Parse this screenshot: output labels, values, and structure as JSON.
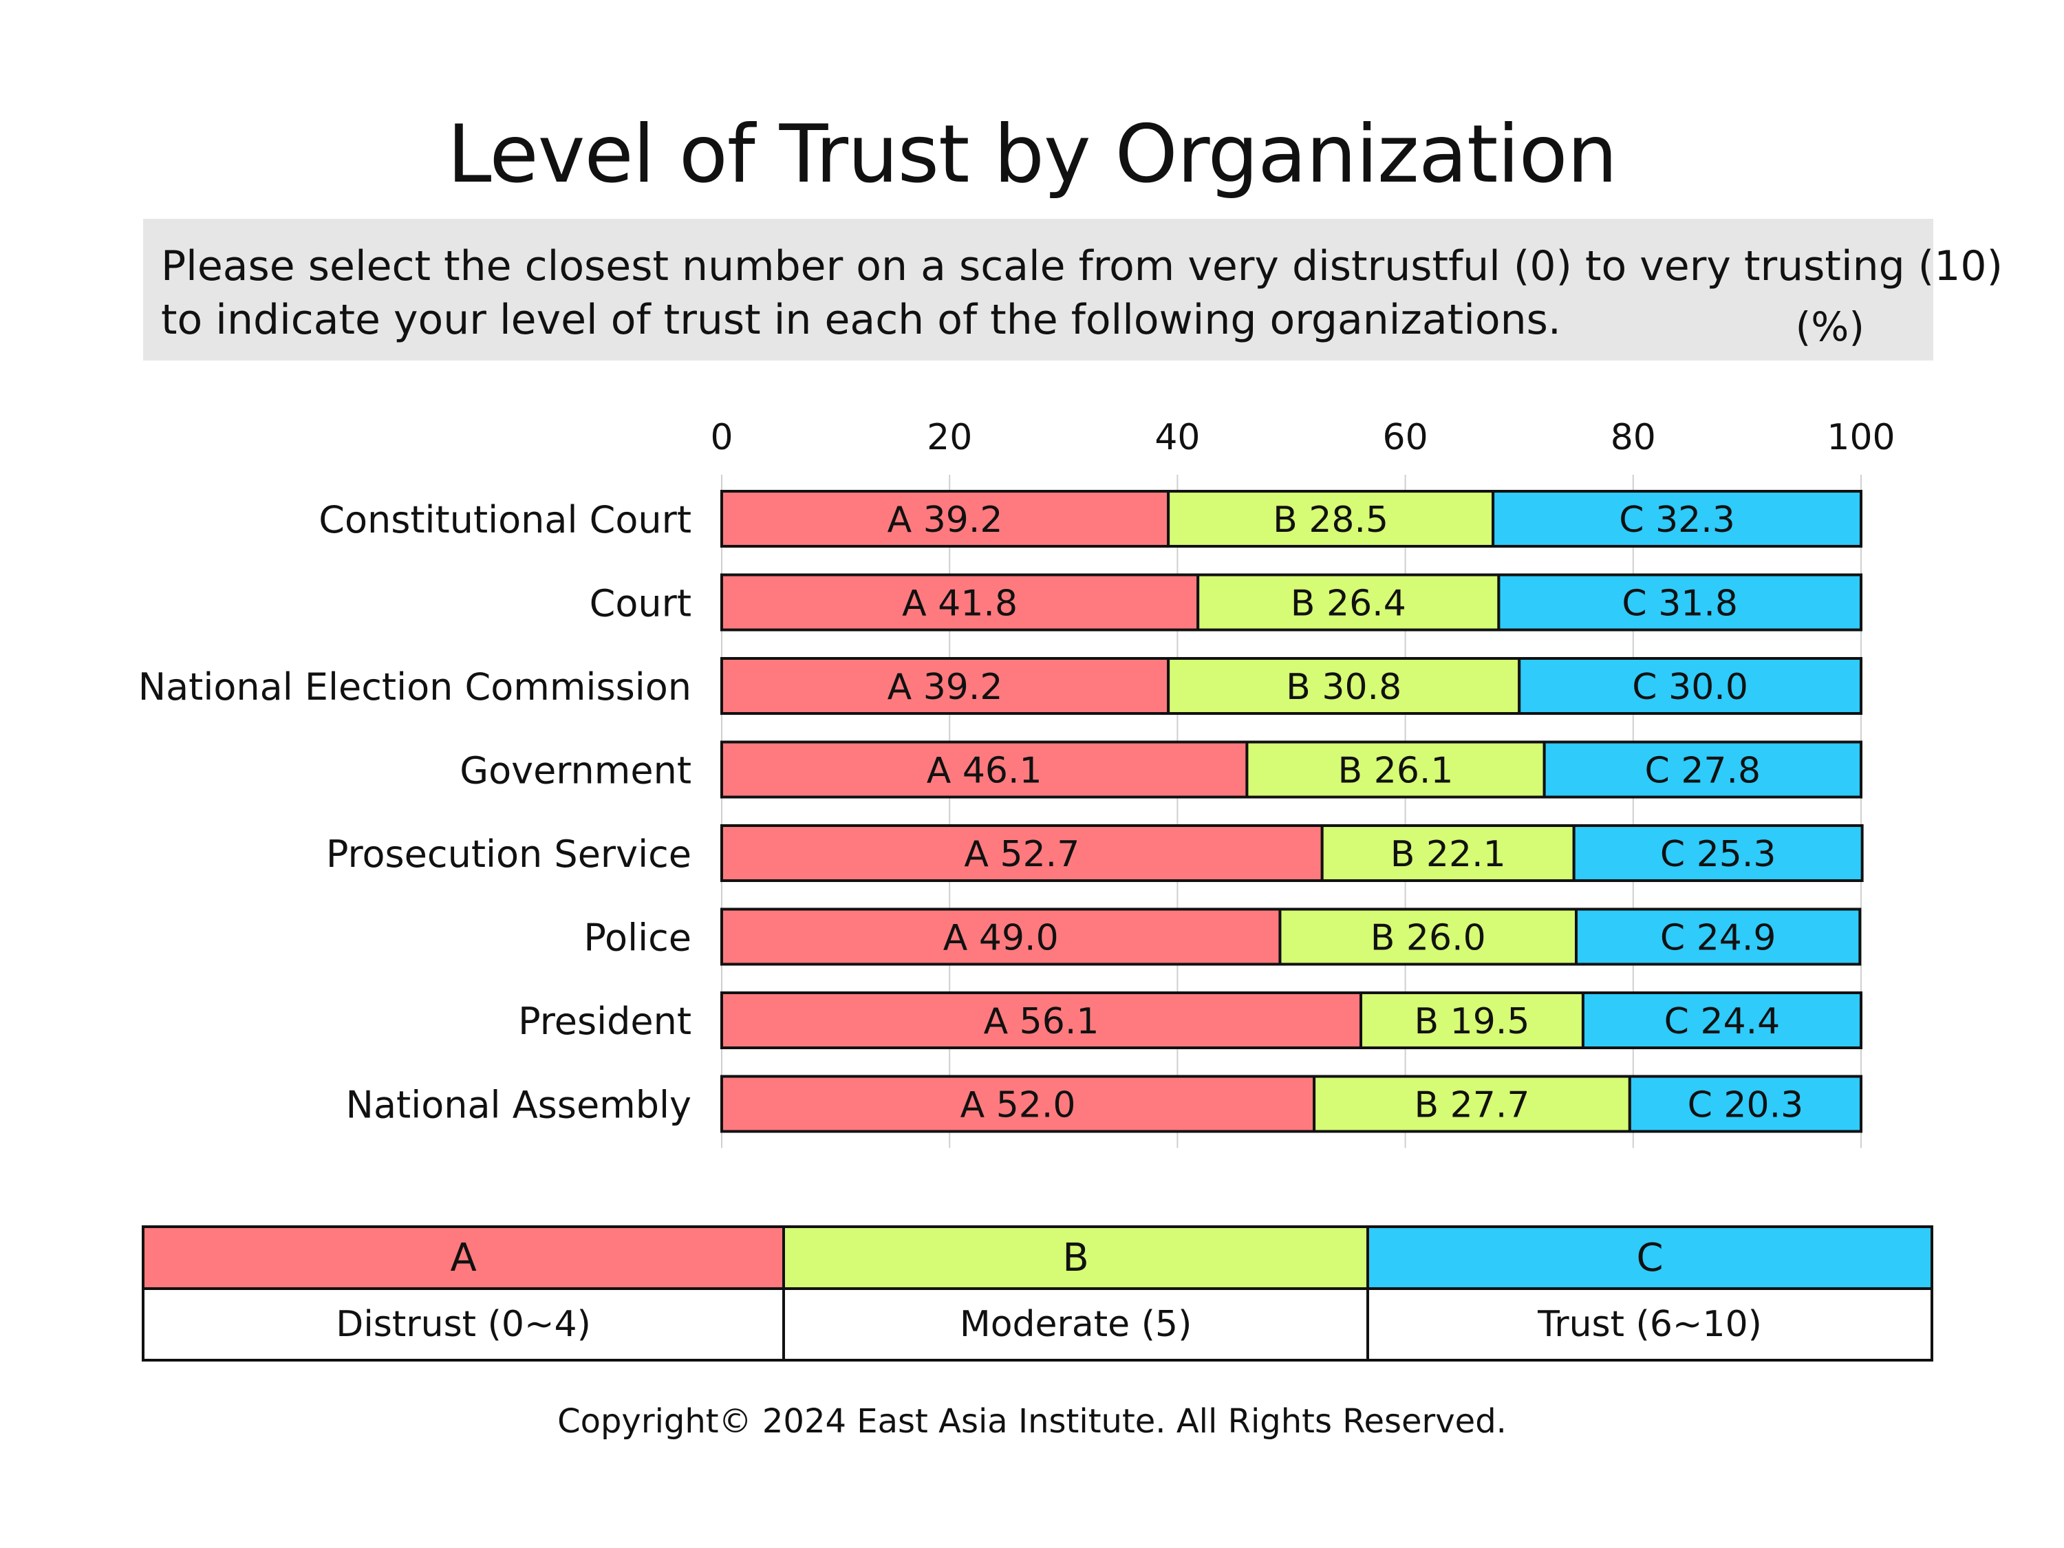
{
  "question": {
    "line1": "Please select the closest number on a scale from very distrustful (0) to very trusting (10)",
    "line2": "to indicate your level of trust in each of the following organizations.",
    "unit": "(%)"
  },
  "colors": {
    "A": "#ff7a7e",
    "B": "#d6fb74",
    "C": "#2ecbfb"
  },
  "chart_data": {
    "type": "bar",
    "stacked": true,
    "orientation": "horizontal",
    "title": "Level of Trust by Organization",
    "xlim": [
      0,
      100
    ],
    "x_ticks": [
      0,
      20,
      40,
      60,
      80,
      100
    ],
    "grid": true,
    "categories": [
      "Constitutional Court",
      "Court",
      "National Election Commission",
      "Government",
      "Prosecution Service",
      "Police",
      "President",
      "National Assembly"
    ],
    "series": [
      {
        "name": "A",
        "values": [
          39.2,
          41.8,
          39.2,
          46.1,
          52.7,
          49.0,
          56.1,
          52.0
        ]
      },
      {
        "name": "B",
        "values": [
          28.5,
          26.4,
          30.8,
          26.1,
          22.1,
          26.0,
          19.5,
          27.7
        ]
      },
      {
        "name": "C",
        "values": [
          32.3,
          31.8,
          30.0,
          27.8,
          25.3,
          24.9,
          24.4,
          20.3
        ]
      }
    ]
  },
  "legend": [
    {
      "code": "A",
      "label": "Distrust (0~4)"
    },
    {
      "code": "B",
      "label": "Moderate (5)"
    },
    {
      "code": "C",
      "label": "Trust (6~10)"
    }
  ],
  "copyright": "Copyright© 2024 East Asia Institute. All Rights Reserved."
}
